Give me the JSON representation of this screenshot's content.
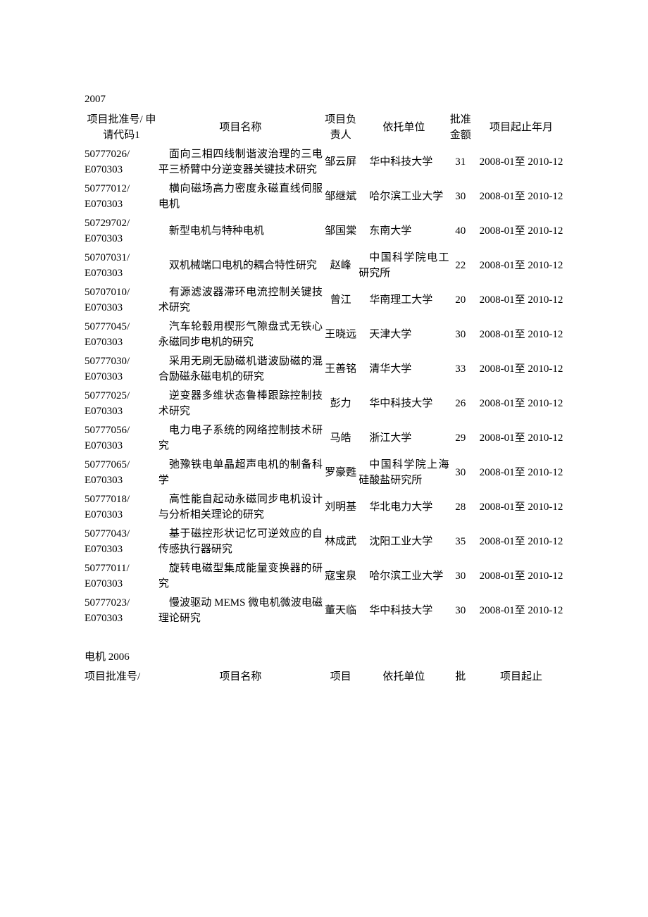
{
  "section1": {
    "year_label": "2007",
    "headers": {
      "id": "项目批准号/ 申请代码1",
      "name": "项目名称",
      "person": "项目负责人",
      "org": "依托单位",
      "amount": "批准金额",
      "date": "项目起止年月"
    },
    "rows": [
      {
        "id": "50777026/ E070303",
        "name": "面向三相四线制谐波治理的三电平三桥臂中分逆变器关键技术研究",
        "person": "邹云屏",
        "org": "华中科技大学",
        "amount": "31",
        "date": "2008-01至 2010-12"
      },
      {
        "id": "50777012/ E070303",
        "name": "横向磁场高力密度永磁直线伺服电机",
        "person": "邹继斌",
        "org": "哈尔滨工业大学",
        "amount": "30",
        "date": "2008-01至 2010-12"
      },
      {
        "id": "50729702/ E070303",
        "name": "新型电机与特种电机",
        "person": "邹国棠",
        "org": "东南大学",
        "amount": "40",
        "date": "2008-01至 2010-12"
      },
      {
        "id": "50707031/ E070303",
        "name": "双机械端口电机的耦合特性研究",
        "person": "赵峰",
        "org": "中国科学院电工研究所",
        "amount": "22",
        "date": "2008-01至 2010-12"
      },
      {
        "id": "50707010/ E070303",
        "name": "有源滤波器滞环电流控制关键技术研究",
        "person": "曾江",
        "org": "华南理工大学",
        "amount": "20",
        "date": "2008-01至 2010-12"
      },
      {
        "id": "50777045/ E070303",
        "name": "汽车轮毂用楔形气隙盘式无铁心永磁同步电机的研究",
        "person": "王晓远",
        "org": "天津大学",
        "amount": "30",
        "date": "2008-01至 2010-12"
      },
      {
        "id": "50777030/ E070303",
        "name": "采用无刷无励磁机谐波励磁的混合励磁永磁电机的研究",
        "person": "王善铭",
        "org": "清华大学",
        "amount": "33",
        "date": "2008-01至 2010-12"
      },
      {
        "id": "50777025/ E070303",
        "name": "逆变器多维状态鲁棒跟踪控制技术研究",
        "person": "彭力",
        "org": "华中科技大学",
        "amount": "26",
        "date": "2008-01至 2010-12"
      },
      {
        "id": "50777056/ E070303",
        "name": "电力电子系统的网络控制技术研究",
        "person": "马皓",
        "org": "浙江大学",
        "amount": "29",
        "date": "2008-01至 2010-12"
      },
      {
        "id": "50777065/ E070303",
        "name": "弛豫铁电单晶超声电机的制备科学",
        "person": "罗豪甦",
        "org": "中国科学院上海硅酸盐研究所",
        "amount": "30",
        "date": "2008-01至 2010-12"
      },
      {
        "id": "50777018/ E070303",
        "name": "高性能自起动永磁同步电机设计与分析相关理论的研究",
        "person": "刘明基",
        "org": "华北电力大学",
        "amount": "28",
        "date": "2008-01至 2010-12"
      },
      {
        "id": "50777043/ E070303",
        "name": "基于磁控形状记忆可逆效应的自传感执行器研究",
        "person": "林成武",
        "org": "沈阳工业大学",
        "amount": "35",
        "date": "2008-01至 2010-12"
      },
      {
        "id": "50777011/ E070303",
        "name": "旋转电磁型集成能量变换器的研究",
        "person": "寇宝泉",
        "org": "哈尔滨工业大学",
        "amount": "30",
        "date": "2008-01至 2010-12"
      },
      {
        "id": "50777023/ E070303",
        "name": "慢波驱动 MEMS 微电机微波电磁理论研究",
        "person": "董天临",
        "org": "华中科技大学",
        "amount": "30",
        "date": "2008-01至 2010-12"
      }
    ]
  },
  "section2": {
    "label": "电机 2006",
    "headers": {
      "id": "项目批准号/",
      "name": "项目名称",
      "person": "项目",
      "org": "依托单位",
      "amount": "批",
      "date": "项目起止"
    }
  }
}
